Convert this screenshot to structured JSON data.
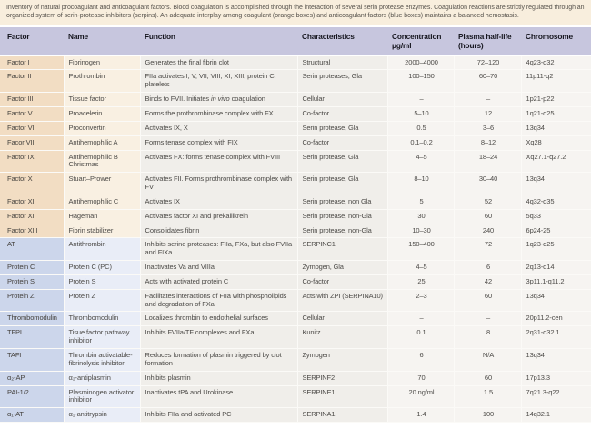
{
  "intro": "Inventory of natural procoagulant and anticoagulant factors. Blood coagulation is accomplished through the interaction of several serin protease enzymes. Coagulation reactions are strictly regulated through an organized system of serin-protease inhibitors (serpins). An adequate interplay among coagulant (orange boxes) and anticoagulant factors (blue boxes) maintains a balanced hemostasis.",
  "columns": [
    {
      "label": "Factor",
      "sub": ""
    },
    {
      "label": "Name",
      "sub": ""
    },
    {
      "label": "Function",
      "sub": ""
    },
    {
      "label": "Characteristics",
      "sub": ""
    },
    {
      "label": "Concentration",
      "sub": "μg/ml"
    },
    {
      "label": "Plasma half-life",
      "sub": "(hours)"
    },
    {
      "label": "Chromosome",
      "sub": ""
    }
  ],
  "colors": {
    "intro_bg": "#f8eedd",
    "header_bg": "#c7c6de",
    "header_text": "#16161f",
    "coagulant_factor_bg": "#f2ddc3",
    "coagulant_name_bg": "#f9f0e2",
    "anticoagulant_factor_bg": "#ccd6eb",
    "anticoagulant_name_bg": "#e9edf7",
    "body_bg": "#f0eeea",
    "body_bg_light": "#f6f4f1",
    "text": "#4c4a47"
  },
  "rows": [
    {
      "type": "coagulant",
      "factor": "Factor I",
      "name": "Fibrinogen",
      "function": "Generates the final fibrin clot",
      "characteristics": "Structural",
      "concentration": "2000–4000",
      "half_life": "72–120",
      "chromosome": "4q23-q32"
    },
    {
      "type": "coagulant",
      "factor": "Factor II",
      "name": "Prothrombin",
      "function": "FIIa activates I, V, VII, VIII, XI, XIII, protein C, platelets",
      "characteristics": "Serin proteases, Gla",
      "concentration": "100–150",
      "half_life": "60–70",
      "chromosome": "11p11-q2"
    },
    {
      "type": "coagulant",
      "factor": "Factor III",
      "name": "Tissue factor",
      "function": "Binds to FVII. Initiates *in vivo* coagulation",
      "characteristics": "Cellular",
      "concentration": "–",
      "half_life": "–",
      "chromosome": "1p21-p22"
    },
    {
      "type": "coagulant",
      "factor": "Factor V",
      "name": "Proacelerin",
      "function": "Forms the prothrombinase complex with FX",
      "characteristics": "Co-factor",
      "concentration": "5–10",
      "half_life": "12",
      "chromosome": "1q21-q25"
    },
    {
      "type": "coagulant",
      "factor": "Factor VII",
      "name": "Proconvertin",
      "function": "Activates IX, X",
      "characteristics": "Serin protease, Gla",
      "concentration": "0.5",
      "half_life": "3–6",
      "chromosome": "13q34"
    },
    {
      "type": "coagulant",
      "factor": "Facor VIII",
      "name": "Antihemophilic A",
      "function": "Forms tenase complex with FIX",
      "characteristics": "Co-factor",
      "concentration": "0.1–0.2",
      "half_life": "8–12",
      "chromosome": "Xq28"
    },
    {
      "type": "coagulant",
      "factor": "Factor IX",
      "name": "Antihemophilic B Christmas",
      "function": "Activates FX: forms tenase complex with FVIII",
      "characteristics": "Serin protease, Gla",
      "concentration": "4–5",
      "half_life": "18–24",
      "chromosome": "Xq27.1-q27.2"
    },
    {
      "type": "coagulant",
      "factor": "Factor X",
      "name": "Stuart–Prower",
      "function": "Activates FII. Forms prothrombinase complex with FV",
      "characteristics": "Serin protease, Gla",
      "concentration": "8–10",
      "half_life": "30–40",
      "chromosome": "13q34"
    },
    {
      "type": "coagulant",
      "factor": "Factor XI",
      "name": "Antihemophilic C",
      "function": "Activates IX",
      "characteristics": "Serin protease, non Gla",
      "concentration": "5",
      "half_life": "52",
      "chromosome": "4q32-q35"
    },
    {
      "type": "coagulant",
      "factor": "Factor XII",
      "name": "Hageman",
      "function": "Activates factor XI and prekallikrein",
      "characteristics": "Serin protease, non-Gla",
      "concentration": "30",
      "half_life": "60",
      "chromosome": "5q33"
    },
    {
      "type": "coagulant",
      "factor": "Factor XIII",
      "name": "Fibrin stabilizer",
      "function": "Consolidates fibrin",
      "characteristics": "Serin protease, non-Gla",
      "concentration": "10–30",
      "half_life": "240",
      "chromosome": "6p24-25"
    },
    {
      "type": "anticoagulant",
      "factor": "AT",
      "name": "Antithrombin",
      "function": "Inhibits serine proteases: FIIa, FXa, but also FVIIa and FIXa",
      "characteristics": "SERPINC1",
      "concentration": "150–400",
      "half_life": "72",
      "chromosome": "1q23-q25"
    },
    {
      "type": "anticoagulant",
      "factor": "Protein C",
      "name": "Protein C (PC)",
      "function": "Inactivates Va and VIIIa",
      "characteristics": "Zymogen, Gla",
      "concentration": "4–5",
      "half_life": "6",
      "chromosome": "2q13-q14"
    },
    {
      "type": "anticoagulant",
      "factor": "Protein S",
      "name": "Protein S",
      "function": "Acts with activated protein C",
      "characteristics": "Co-factor",
      "concentration": "25",
      "half_life": "42",
      "chromosome": "3p11.1-q11.2"
    },
    {
      "type": "anticoagulant",
      "factor": "Protein Z",
      "name": "Protein Z",
      "function": "Facilitates interactions of FIIa with phospholipids and degradation of FXa",
      "characteristics": "Acts with ZPI (SERPINA10)",
      "concentration": "2–3",
      "half_life": "60",
      "chromosome": "13q34"
    },
    {
      "type": "anticoagulant",
      "factor": "Thrombomodulin",
      "name": "Thrombomodulin",
      "function": "Localizes thrombin to endothelial surfaces",
      "characteristics": "Cellular",
      "concentration": "–",
      "half_life": "–",
      "chromosome": "20p11.2-cen"
    },
    {
      "type": "anticoagulant",
      "factor": "TFPI",
      "name": "Tisue factor pathway inhibitor",
      "function": "Inhibits FVIIa/TF complexes and FXa",
      "characteristics": "Kunitz",
      "concentration": "0.1",
      "half_life": "8",
      "chromosome": "2q31-q32.1"
    },
    {
      "type": "anticoagulant",
      "factor": "TAFI",
      "name": "Thrombin activatable-fibrinolysis inhibitor",
      "function": "Reduces formation of plasmin triggered by clot formation",
      "characteristics": "Zymogen",
      "concentration": "6",
      "half_life": "N/A",
      "chromosome": "13q34"
    },
    {
      "type": "anticoagulant",
      "factor": "α₂-AP",
      "name": "α₂-antiplasmin",
      "function": "Inhibits plasmin",
      "characteristics": "SERPINF2",
      "concentration": "70",
      "half_life": "60",
      "chromosome": "17p13.3"
    },
    {
      "type": "anticoagulant",
      "factor": "PAI-1/2",
      "name": "Plasminogen activator inhibitor",
      "function": "Inactivates tPA and Urokinase",
      "characteristics": "SERPINE1",
      "concentration": "20 ng/ml",
      "half_life": "1.5",
      "chromosome": "7q21.3-q22"
    },
    {
      "type": "anticoagulant",
      "factor": "α₁-AT",
      "name": "α₁-antitrypsin",
      "function": "Inhibits FIIa and activated PC",
      "characteristics": "SERPINA1",
      "concentration": "1.4",
      "half_life": "100",
      "chromosome": "14q32.1"
    }
  ]
}
